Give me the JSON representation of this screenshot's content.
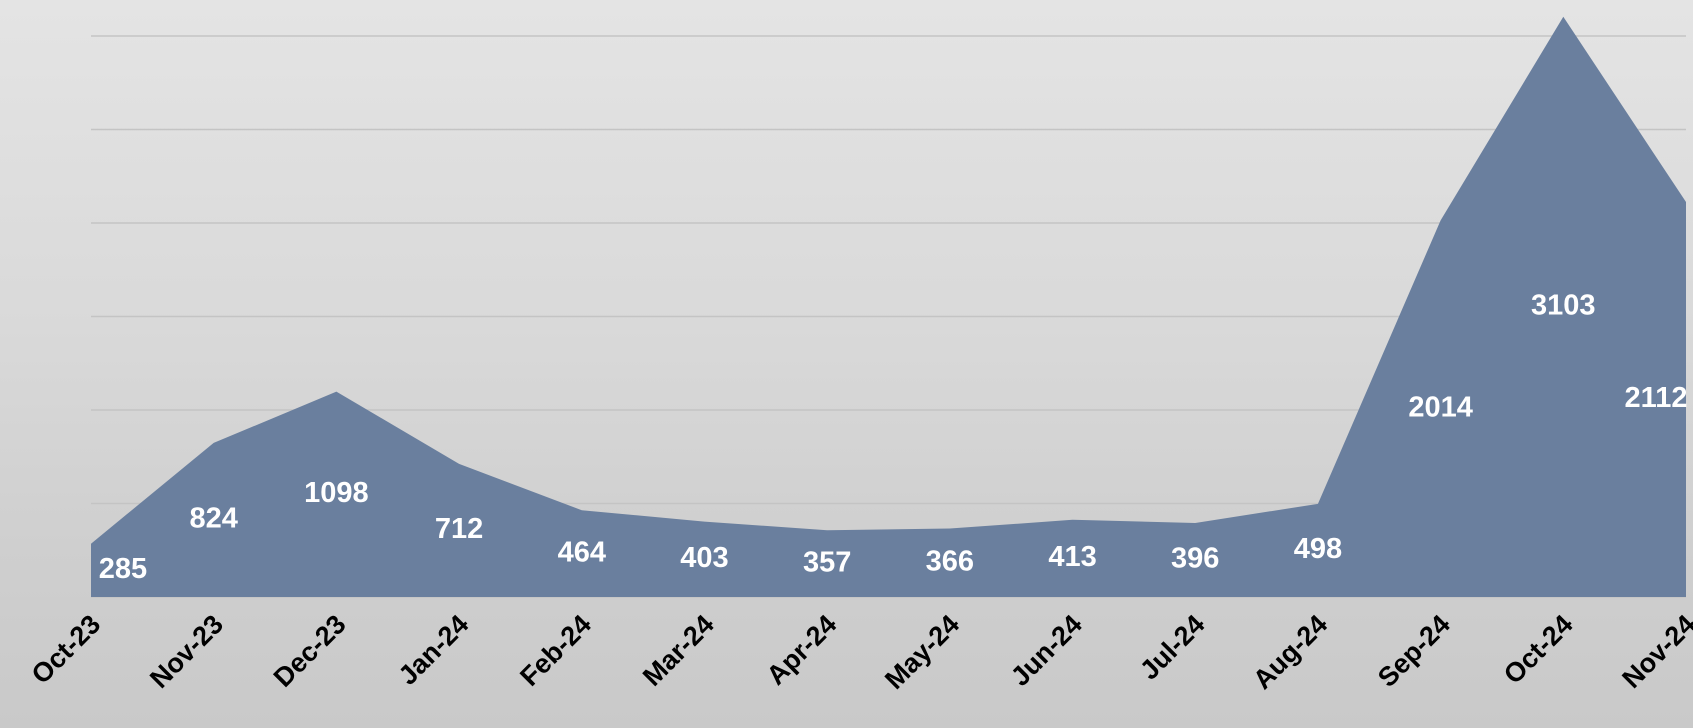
{
  "chart_data": {
    "type": "area",
    "categories": [
      "Oct-23",
      "Nov-23",
      "Dec-23",
      "Jan-24",
      "Feb-24",
      "Mar-24",
      "Apr-24",
      "May-24",
      "Jun-24",
      "Jul-24",
      "Aug-24",
      "Sep-24",
      "Oct-24",
      "Nov-24"
    ],
    "values": [
      285,
      824,
      1098,
      712,
      464,
      403,
      357,
      366,
      413,
      396,
      498,
      2014,
      3103,
      2112
    ],
    "color": "#6a7f9e",
    "ylim": [
      0,
      3000
    ],
    "yticks": [
      0,
      500,
      1000,
      1500,
      2000,
      2500,
      3000
    ],
    "grid": true
  }
}
